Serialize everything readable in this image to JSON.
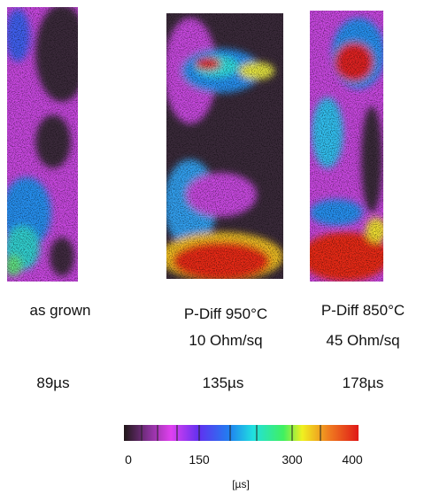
{
  "panels": [
    {
      "label": "as grown",
      "lifetime": "89µs"
    },
    {
      "label": "P-Diff 950°C",
      "sheet": "10 Ohm/sq",
      "lifetime": "135µs"
    },
    {
      "label": "P-Diff 850°C",
      "sheet": "45 Ohm/sq",
      "lifetime": "178µs"
    }
  ],
  "colorbar": {
    "ticks": [
      0,
      150,
      300,
      400
    ],
    "unit": "[µs]"
  }
}
